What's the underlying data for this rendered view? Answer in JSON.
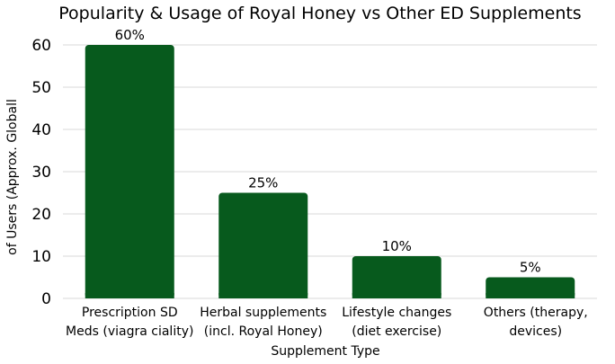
{
  "chart_data": {
    "type": "bar",
    "title": "Popularity & Usage of Royal Honey vs Other ED Supplements",
    "xlabel": "Supplement Type",
    "ylabel": "of Users (Approx. Globall",
    "categories": [
      [
        "Prescription SD",
        "Meds (viagra ciality)"
      ],
      [
        "Herbal supplements",
        "(incl. Royal Honey)"
      ],
      [
        "Lifestyle changes",
        "(diet exercise)"
      ],
      [
        "Others (therapy,",
        "devices)"
      ]
    ],
    "values": [
      60,
      25,
      10,
      5
    ],
    "data_labels": [
      "60%",
      "25%",
      "10%",
      "5%"
    ],
    "ylim": [
      0,
      60
    ],
    "yticks": [
      "0",
      "10",
      "20",
      "30",
      "40",
      "50",
      "60"
    ],
    "grid": true,
    "legend": "none",
    "colors": {
      "bar": "#075a1d",
      "grid": "#d9d9d9"
    }
  }
}
